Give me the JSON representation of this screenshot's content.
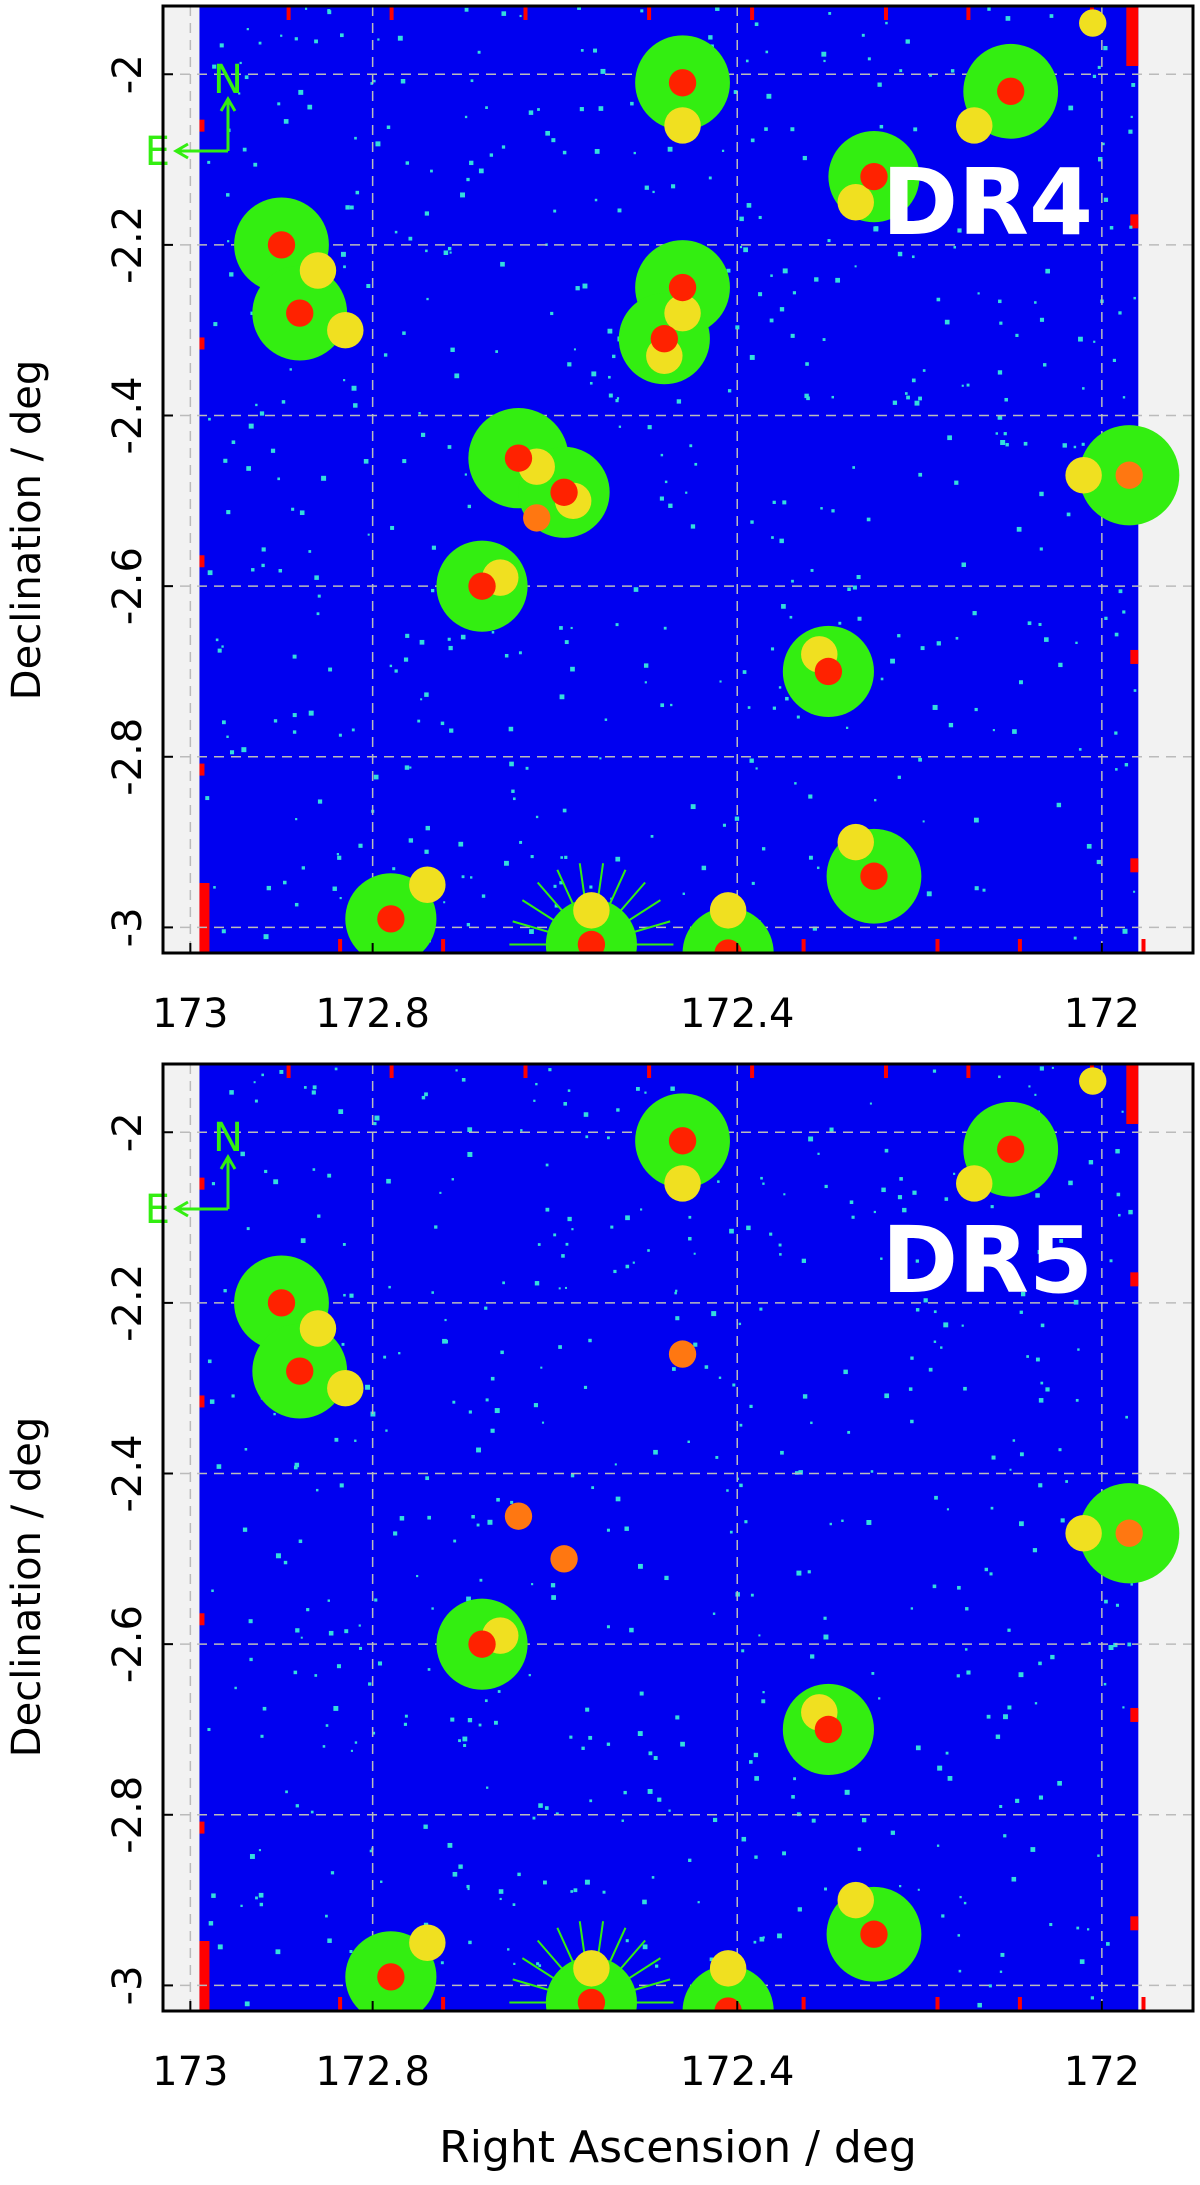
{
  "figure": {
    "xlabel": "Right Ascension / deg",
    "ylabel": "Declination / deg"
  },
  "colors": {
    "background": "#0000f0",
    "mask_white": "#f2f2f2",
    "edge_red": "#ff0000",
    "star_halo": "#33ee11",
    "star_core_yellow": "#f0e020",
    "star_core_orange": "#ff7711",
    "star_core_red": "#ff2200",
    "noise_cyan": "#33dddd",
    "compass": "#33ee11",
    "grid": "#bbbbbb",
    "label": "#ffffff"
  },
  "chart_data": [
    {
      "type": "scatter",
      "panel_label": "DR4",
      "compass": {
        "north": "N",
        "east": "E"
      },
      "xlim": [
        173.03,
        171.9
      ],
      "ylim": [
        -3.03,
        -1.92
      ],
      "xticks": [
        173,
        172.8,
        172.4,
        172
      ],
      "xticklabels": [
        "173",
        "172.8",
        "172.4",
        "172"
      ],
      "yticks": [
        -2,
        -2.2,
        -2.4,
        -2.6,
        -2.8,
        -3
      ],
      "yticklabels": [
        "-2",
        "-2.2",
        "-2.4",
        "-2.6",
        "-2.8",
        "-3"
      ],
      "grid": true,
      "masked_ra_range": [
        173.03,
        172.99
      ],
      "masked_ra_range_right": [
        171.96,
        171.9
      ],
      "bright_stars": [
        {
          "ra": 172.46,
          "dec": -2.01,
          "halo": 0.052,
          "core_color": "red",
          "sec": {
            "ra": 172.46,
            "dec": -2.06,
            "color": "yellow"
          }
        },
        {
          "ra": 172.1,
          "dec": -2.02,
          "halo": 0.052,
          "core_color": "red",
          "sec": {
            "ra": 172.14,
            "dec": -2.06,
            "color": "yellow"
          }
        },
        {
          "ra": 172.25,
          "dec": -2.12,
          "halo": 0.05,
          "core_color": "red",
          "sec": {
            "ra": 172.27,
            "dec": -2.15,
            "color": "yellow"
          }
        },
        {
          "ra": 172.9,
          "dec": -2.2,
          "halo": 0.052,
          "core_color": "red",
          "sec": {
            "ra": 172.86,
            "dec": -2.23,
            "color": "yellow"
          }
        },
        {
          "ra": 172.88,
          "dec": -2.28,
          "halo": 0.052,
          "core_color": "red",
          "sec": {
            "ra": 172.83,
            "dec": -2.3,
            "color": "yellow"
          }
        },
        {
          "ra": 172.46,
          "dec": -2.25,
          "halo": 0.052,
          "core_color": "red",
          "sec": {
            "ra": 172.46,
            "dec": -2.28,
            "color": "yellow"
          }
        },
        {
          "ra": 172.48,
          "dec": -2.31,
          "halo": 0.05,
          "core_color": "red",
          "sec": {
            "ra": 172.48,
            "dec": -2.33,
            "color": "yellow"
          }
        },
        {
          "ra": 172.64,
          "dec": -2.45,
          "halo": 0.055,
          "core_color": "red",
          "sec": {
            "ra": 172.62,
            "dec": -2.46,
            "color": "yellow"
          }
        },
        {
          "ra": 172.59,
          "dec": -2.49,
          "halo": 0.05,
          "core_color": "red",
          "sec": {
            "ra": 172.58,
            "dec": -2.5,
            "color": "yellow"
          }
        },
        {
          "ra": 172.68,
          "dec": -2.6,
          "halo": 0.05,
          "core_color": "red",
          "sec": {
            "ra": 172.66,
            "dec": -2.59,
            "color": "yellow"
          }
        },
        {
          "ra": 172.3,
          "dec": -2.7,
          "halo": 0.05,
          "core_color": "red",
          "sec": {
            "ra": 172.31,
            "dec": -2.68,
            "color": "yellow"
          }
        },
        {
          "ra": 171.97,
          "dec": -2.47,
          "halo": 0.055,
          "core_color": "orange",
          "sec": {
            "ra": 172.02,
            "dec": -2.47,
            "color": "yellow"
          }
        },
        {
          "ra": 172.25,
          "dec": -2.94,
          "halo": 0.052,
          "core_color": "red",
          "sec": {
            "ra": 172.27,
            "dec": -2.9,
            "color": "yellow"
          }
        },
        {
          "ra": 172.78,
          "dec": -2.99,
          "halo": 0.05,
          "core_color": "red",
          "sec": {
            "ra": 172.74,
            "dec": -2.95,
            "color": "yellow"
          }
        },
        {
          "ra": 172.56,
          "dec": -3.02,
          "halo": 0.05,
          "core_color": "red",
          "sec": {
            "ra": 172.56,
            "dec": -2.98,
            "color": "yellow"
          }
        },
        {
          "ra": 172.41,
          "dec": -3.03,
          "halo": 0.05,
          "core_color": "red",
          "sec": {
            "ra": 172.41,
            "dec": -2.98,
            "color": "yellow"
          }
        }
      ],
      "isolated_cores": [
        {
          "ra": 172.62,
          "dec": -2.52,
          "color": "orange"
        },
        {
          "ra": 172.01,
          "dec": -1.94,
          "color": "yellow"
        }
      ]
    },
    {
      "type": "scatter",
      "panel_label": "DR5",
      "compass": {
        "north": "N",
        "east": "E"
      },
      "xlim": [
        173.03,
        171.9
      ],
      "ylim": [
        -3.03,
        -1.92
      ],
      "xticks": [
        173,
        172.8,
        172.4,
        172
      ],
      "xticklabels": [
        "173",
        "172.8",
        "172.4",
        "172"
      ],
      "yticks": [
        -2,
        -2.2,
        -2.4,
        -2.6,
        -2.8,
        -3
      ],
      "yticklabels": [
        "-2",
        "-2.2",
        "-2.4",
        "-2.6",
        "-2.8",
        "-3"
      ],
      "grid": true,
      "masked_ra_range": [
        173.03,
        172.99
      ],
      "masked_ra_range_right": [
        171.96,
        171.9
      ],
      "bright_stars": [
        {
          "ra": 172.46,
          "dec": -2.01,
          "halo": 0.052,
          "core_color": "red",
          "sec": {
            "ra": 172.46,
            "dec": -2.06,
            "color": "yellow"
          }
        },
        {
          "ra": 172.1,
          "dec": -2.02,
          "halo": 0.052,
          "core_color": "red",
          "sec": {
            "ra": 172.14,
            "dec": -2.06,
            "color": "yellow"
          }
        },
        {
          "ra": 172.9,
          "dec": -2.2,
          "halo": 0.052,
          "core_color": "red",
          "sec": {
            "ra": 172.86,
            "dec": -2.23,
            "color": "yellow"
          }
        },
        {
          "ra": 172.88,
          "dec": -2.28,
          "halo": 0.052,
          "core_color": "red",
          "sec": {
            "ra": 172.83,
            "dec": -2.3,
            "color": "yellow"
          }
        },
        {
          "ra": 172.68,
          "dec": -2.6,
          "halo": 0.05,
          "core_color": "red",
          "sec": {
            "ra": 172.66,
            "dec": -2.59,
            "color": "yellow"
          }
        },
        {
          "ra": 172.3,
          "dec": -2.7,
          "halo": 0.05,
          "core_color": "red",
          "sec": {
            "ra": 172.31,
            "dec": -2.68,
            "color": "yellow"
          }
        },
        {
          "ra": 171.97,
          "dec": -2.47,
          "halo": 0.055,
          "core_color": "orange",
          "sec": {
            "ra": 172.02,
            "dec": -2.47,
            "color": "yellow"
          }
        },
        {
          "ra": 172.25,
          "dec": -2.94,
          "halo": 0.052,
          "core_color": "red",
          "sec": {
            "ra": 172.27,
            "dec": -2.9,
            "color": "yellow"
          }
        },
        {
          "ra": 172.78,
          "dec": -2.99,
          "halo": 0.05,
          "core_color": "red",
          "sec": {
            "ra": 172.74,
            "dec": -2.95,
            "color": "yellow"
          }
        },
        {
          "ra": 172.56,
          "dec": -3.02,
          "halo": 0.05,
          "core_color": "red",
          "sec": {
            "ra": 172.56,
            "dec": -2.98,
            "color": "yellow"
          }
        },
        {
          "ra": 172.41,
          "dec": -3.03,
          "halo": 0.05,
          "core_color": "red",
          "sec": {
            "ra": 172.41,
            "dec": -2.98,
            "color": "yellow"
          }
        }
      ],
      "isolated_cores": [
        {
          "ra": 172.46,
          "dec": -2.26,
          "color": "orange"
        },
        {
          "ra": 172.64,
          "dec": -2.45,
          "color": "orange"
        },
        {
          "ra": 172.59,
          "dec": -2.5,
          "color": "orange"
        },
        {
          "ra": 172.01,
          "dec": -1.94,
          "color": "yellow"
        }
      ]
    }
  ]
}
